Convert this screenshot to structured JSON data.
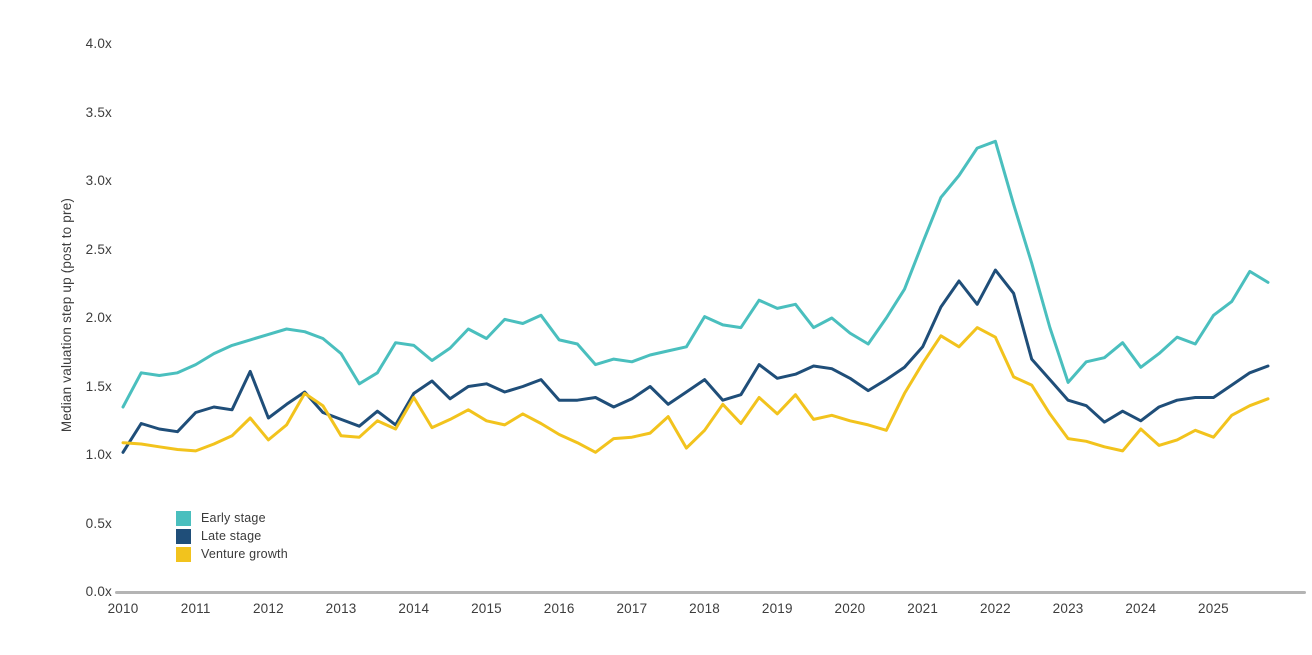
{
  "chart_data": {
    "type": "line",
    "title": "",
    "ylabel": "Median valuation step up (post to pre)",
    "xlabel": "",
    "ylim": [
      0,
      4.25
    ],
    "grid": false,
    "frequency": "quarterly",
    "x_start": "Q1 2010",
    "x_end": "Q4 2025",
    "x_tick_labels": [
      "2010",
      "2011",
      "2012",
      "2013",
      "2014",
      "2015",
      "2016",
      "2017",
      "2018",
      "2019",
      "2020",
      "2021",
      "2022",
      "2023",
      "2024",
      "2025"
    ],
    "y_tick_labels": [
      "0.0x",
      "0.5x",
      "1.0x",
      "1.5x",
      "2.0x",
      "2.5x",
      "3.0x",
      "3.5x",
      "4.0x"
    ],
    "axis_line_color": "#b4b4b4",
    "legend_position": "inside-bottom-left",
    "series": [
      {
        "name": "Early stage",
        "color": "#4abfbe",
        "values": [
          1.35,
          1.6,
          1.58,
          1.6,
          1.66,
          1.74,
          1.8,
          1.84,
          1.88,
          1.92,
          1.9,
          1.85,
          1.74,
          1.52,
          1.6,
          1.82,
          1.8,
          1.69,
          1.78,
          1.92,
          1.85,
          1.99,
          1.96,
          2.02,
          1.84,
          1.81,
          1.66,
          1.7,
          1.68,
          1.73,
          1.76,
          1.79,
          2.01,
          1.95,
          1.93,
          2.13,
          2.07,
          2.1,
          1.93,
          2.0,
          1.89,
          1.81,
          2.0,
          2.21,
          2.55,
          2.88,
          3.04,
          3.24,
          3.29,
          2.83,
          2.4,
          1.93,
          1.53,
          1.68,
          1.71,
          1.82,
          1.64,
          1.74,
          1.86,
          1.81,
          2.02,
          2.12,
          2.34,
          2.26
        ]
      },
      {
        "name": "Late stage",
        "color": "#1f4e79",
        "values": [
          1.02,
          1.23,
          1.19,
          1.17,
          1.31,
          1.35,
          1.33,
          1.61,
          1.27,
          1.37,
          1.46,
          1.31,
          1.26,
          1.21,
          1.32,
          1.22,
          1.45,
          1.54,
          1.41,
          1.5,
          1.52,
          1.46,
          1.5,
          1.55,
          1.4,
          1.4,
          1.42,
          1.35,
          1.41,
          1.5,
          1.37,
          1.46,
          1.55,
          1.4,
          1.44,
          1.66,
          1.56,
          1.59,
          1.65,
          1.63,
          1.56,
          1.47,
          1.55,
          1.64,
          1.79,
          2.08,
          2.27,
          2.1,
          2.35,
          2.18,
          1.7,
          1.55,
          1.4,
          1.36,
          1.24,
          1.32,
          1.25,
          1.35,
          1.4,
          1.42,
          1.42,
          1.51,
          1.6,
          1.65
        ]
      },
      {
        "name": "Venture growth",
        "color": "#f2c31d",
        "values": [
          1.09,
          1.08,
          1.06,
          1.04,
          1.03,
          1.08,
          1.14,
          1.27,
          1.11,
          1.22,
          1.45,
          1.36,
          1.14,
          1.13,
          1.25,
          1.19,
          1.42,
          1.2,
          1.26,
          1.33,
          1.25,
          1.22,
          1.3,
          1.23,
          1.15,
          1.09,
          1.02,
          1.12,
          1.13,
          1.16,
          1.28,
          1.05,
          1.18,
          1.37,
          1.23,
          1.42,
          1.3,
          1.44,
          1.26,
          1.29,
          1.25,
          1.22,
          1.18,
          1.45,
          1.67,
          1.87,
          1.79,
          1.93,
          1.86,
          1.57,
          1.51,
          1.3,
          1.12,
          1.1,
          1.06,
          1.03,
          1.19,
          1.07,
          1.11,
          1.18,
          1.13,
          1.29,
          1.36,
          1.41
        ]
      }
    ]
  }
}
